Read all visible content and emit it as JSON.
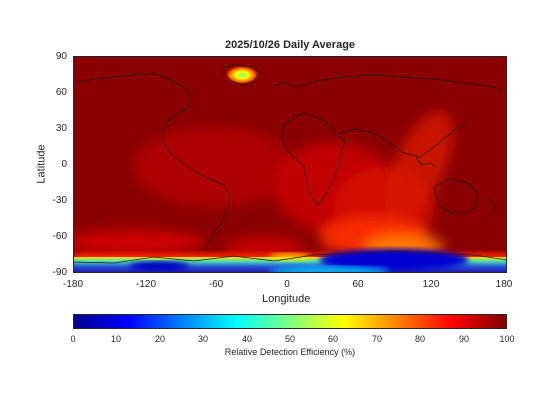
{
  "title": "2025/10/26 Daily Average",
  "map": {
    "xlabel": "Longitude",
    "ylabel": "Latitude",
    "lon_range": [
      -180,
      180
    ],
    "lat_range": [
      -90,
      90
    ],
    "x_ticks": [
      "-180",
      "-120",
      "-60",
      "0",
      "60",
      "120",
      "180"
    ],
    "y_ticks": [
      "90",
      "60",
      "30",
      "0",
      "-30",
      "-60",
      "-90"
    ],
    "features": {
      "background_value_pct": 95,
      "greenland_low_pct": 55,
      "south_atlantic_indian_band_pct": 80,
      "antarctic_low_pct": 10
    }
  },
  "colorbar": {
    "label": "Relative Detection Efficiency (%)",
    "range": [
      0,
      100
    ],
    "ticks": [
      "0",
      "10",
      "20",
      "30",
      "40",
      "50",
      "60",
      "70",
      "80",
      "90",
      "100"
    ],
    "colormap": "jet"
  }
}
